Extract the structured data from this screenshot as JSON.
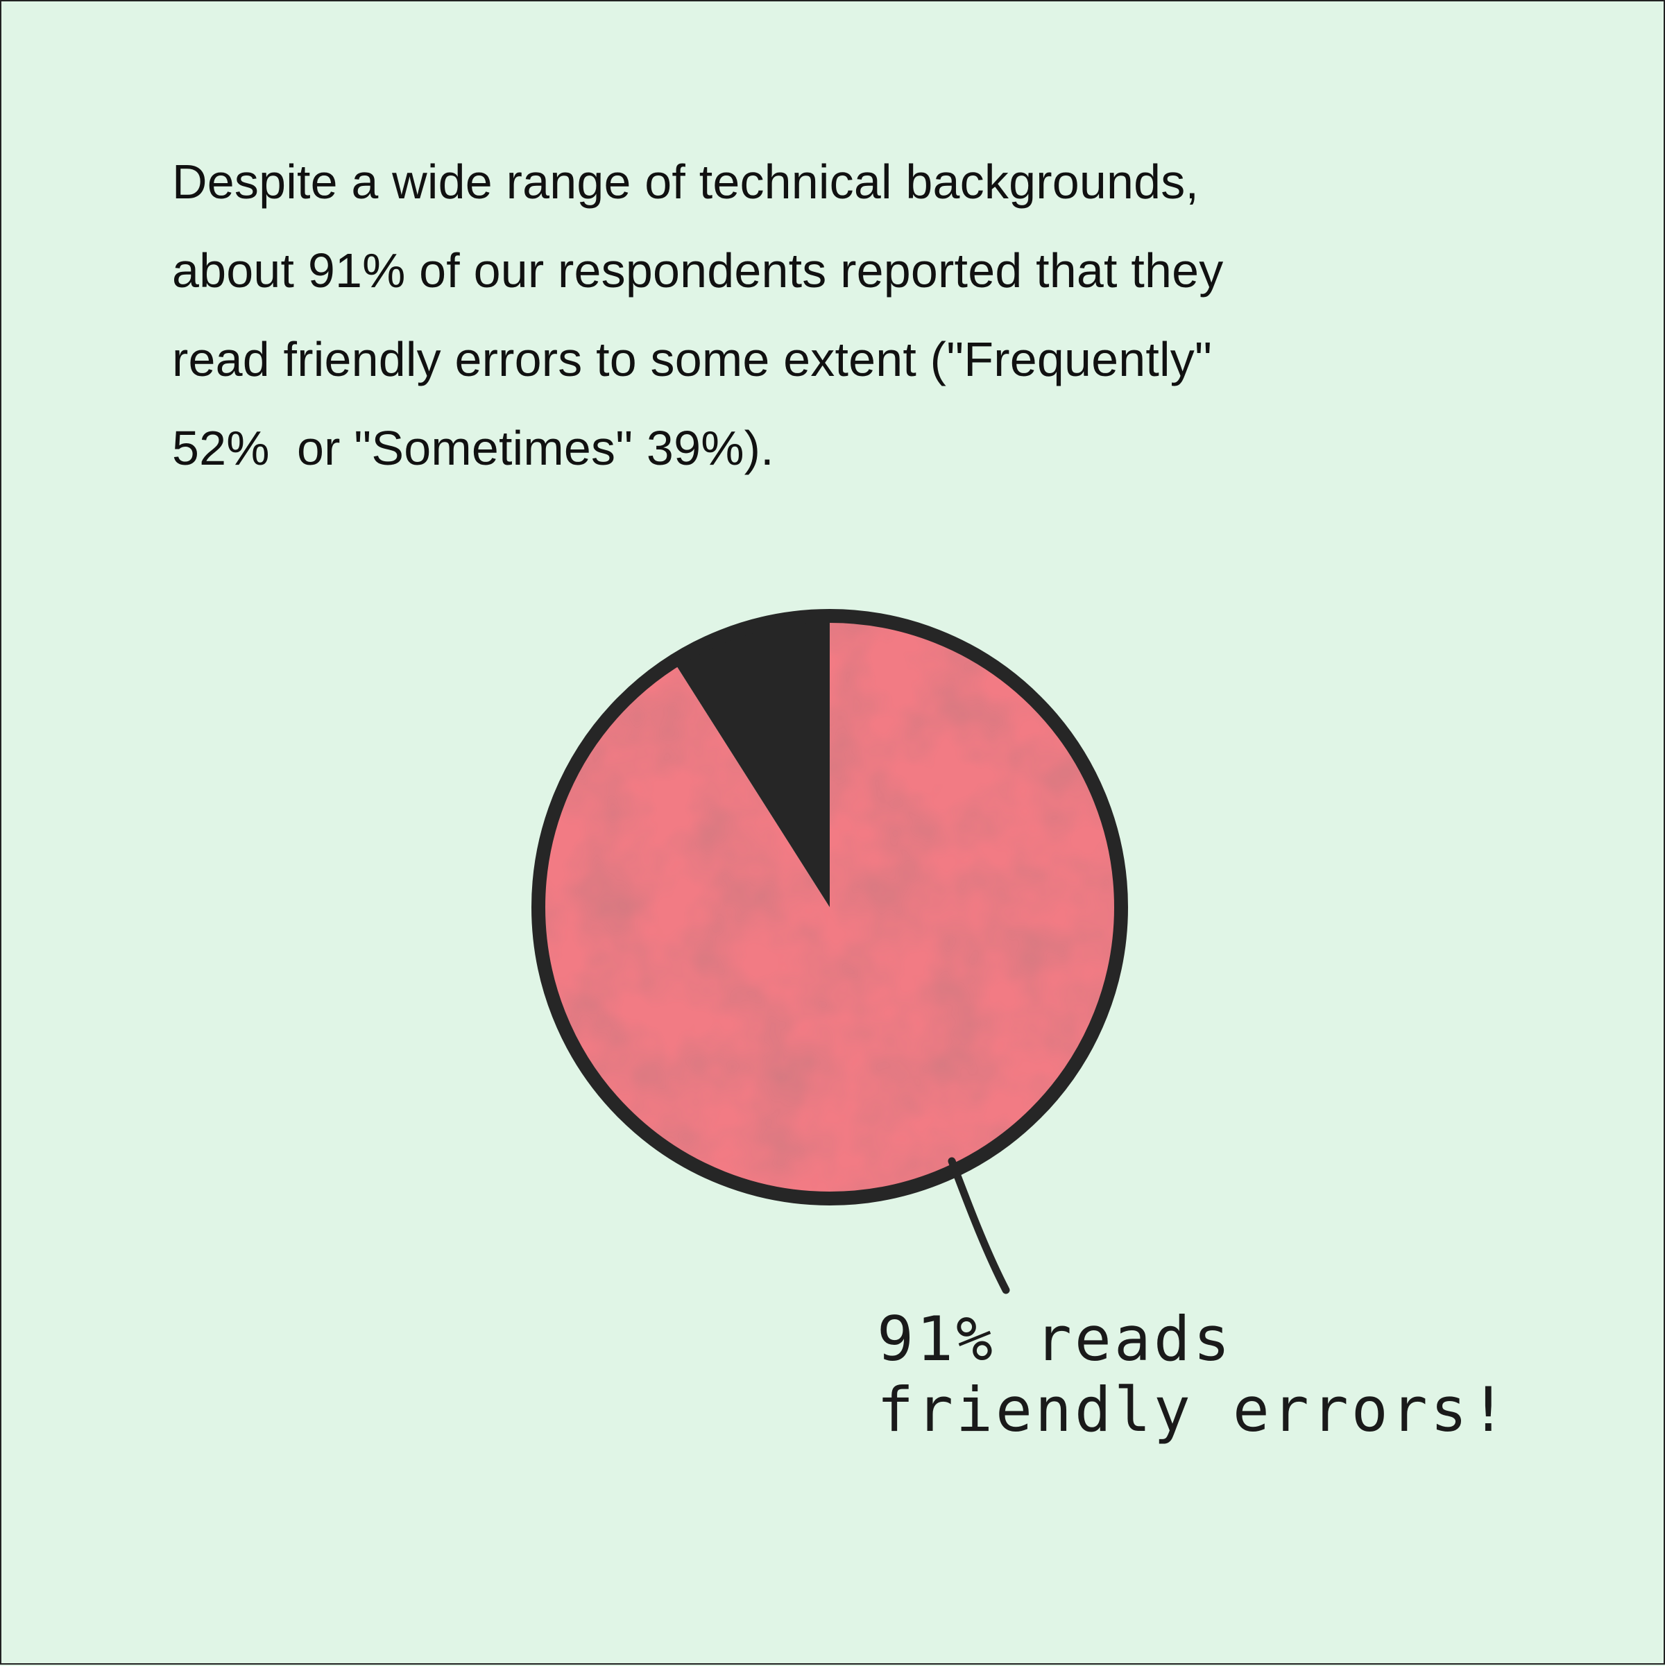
{
  "intro": {
    "lines": [
      "Despite a wide range of technical backgrounds,",
      "about 91% of our respondents reported that they",
      "read friendly errors to some extent (\"Frequently\"",
      "52%  or \"Sometimes\" 39%)."
    ]
  },
  "callout": {
    "lines": [
      "91% reads",
      "friendly errors!"
    ]
  },
  "colors": {
    "background": "#e0f5e6",
    "reads": "#f27b84",
    "other": "#262626",
    "outline": "#262626"
  },
  "chart_data": {
    "type": "pie",
    "slices": [
      {
        "label": "91% reads friendly errors!",
        "value": 91,
        "color": "#f27b84"
      },
      {
        "label": "",
        "value": 9,
        "color": "#262626"
      }
    ],
    "start_angle_deg": 0,
    "direction": "clockwise",
    "legend": "none"
  }
}
